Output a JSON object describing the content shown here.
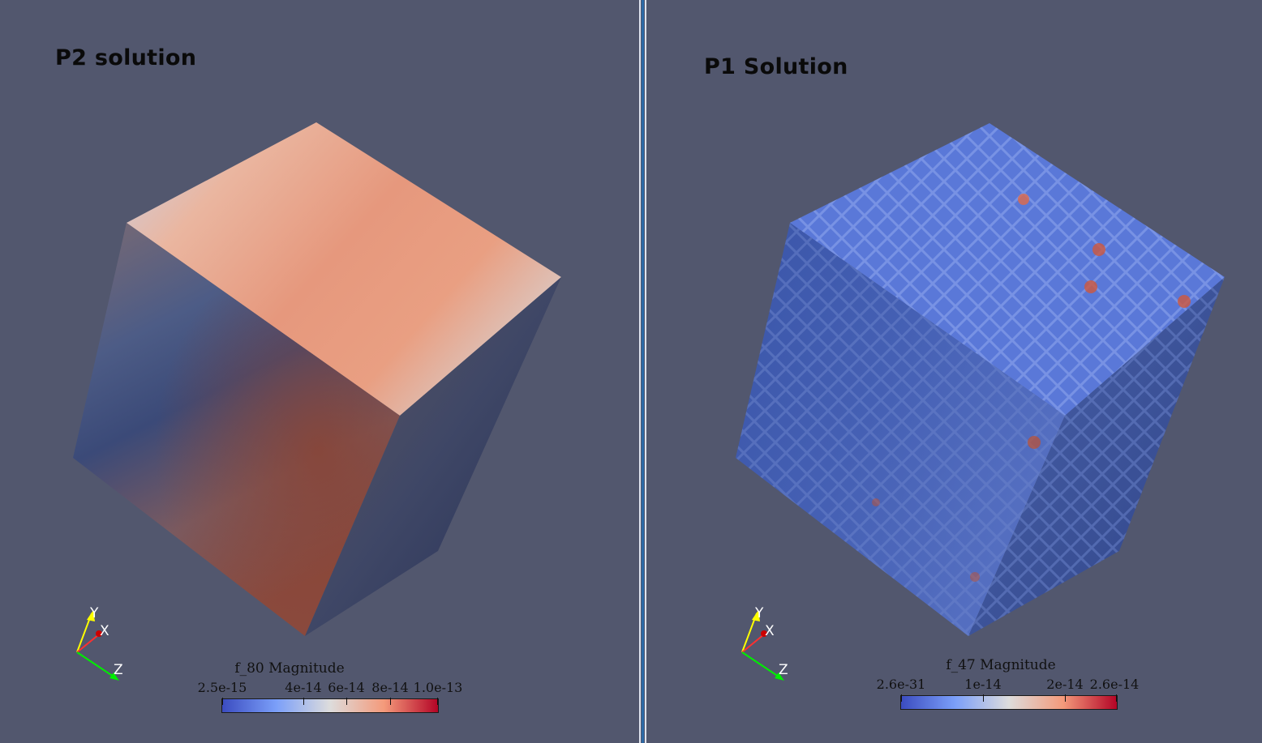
{
  "views": [
    {
      "title": "P2 solution",
      "legend": {
        "title": "f_80 Magnitude",
        "ticks": [
          "2.5e-15",
          "4e-14",
          "6e-14",
          "8e-14",
          "1.0e-13"
        ]
      },
      "axes": {
        "y": "Y",
        "x": "X",
        "z": "Z"
      }
    },
    {
      "title": "P1 Solution",
      "legend": {
        "title": "f_47 Magnitude",
        "ticks": [
          "2.6e-31",
          "1e-14",
          "2e-14",
          "2.6e-14"
        ]
      },
      "axes": {
        "y": "Y",
        "x": "X",
        "z": "Z"
      }
    }
  ],
  "colors": {
    "background": "#52576e",
    "colormap_low": "#3b4cc0",
    "colormap_mid": "#dddcdc",
    "colormap_high": "#b40426",
    "axis_y": "#ffff00",
    "axis_x": "#ff0000",
    "axis_z": "#00ff00"
  }
}
